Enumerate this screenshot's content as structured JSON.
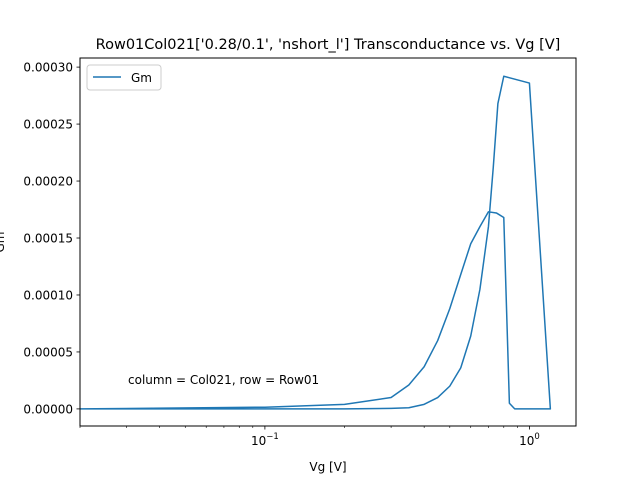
{
  "chart_data": {
    "type": "line",
    "title": "Row01Col021['0.28/0.1', 'nshort_l'] Transconductance vs. Vg [V]",
    "xlabel": "Vg [V]",
    "ylabel": "Gm",
    "xscale": "log",
    "xlim": [
      0.02,
      1.5
    ],
    "ylim": [
      -1.5e-05,
      0.000308
    ],
    "x_ticks": [
      {
        "value": 0.1,
        "base": "10",
        "exponent": "−1"
      },
      {
        "value": 1.0,
        "base": "10",
        "exponent": "0"
      }
    ],
    "y_ticks": [
      {
        "value": 0.0,
        "label": "0.00000"
      },
      {
        "value": 5e-05,
        "label": "0.00005"
      },
      {
        "value": 0.0001,
        "label": "0.00010"
      },
      {
        "value": 0.00015,
        "label": "0.00015"
      },
      {
        "value": 0.0002,
        "label": "0.00020"
      },
      {
        "value": 0.00025,
        "label": "0.00025"
      },
      {
        "value": 0.0003,
        "label": "0.00030"
      }
    ],
    "grid": false,
    "legend_position": "top-left",
    "annotation": "column = Col021, row = Row01",
    "series": [
      {
        "name": "Gm",
        "color": "#1f77b4",
        "x": [
          0.02,
          0.1,
          0.2,
          0.3,
          0.35,
          0.4,
          0.45,
          0.5,
          0.55,
          0.6,
          0.65,
          0.7,
          0.73,
          0.76,
          0.8,
          1.0,
          1.2,
          1.2,
          1.0,
          0.95,
          0.92,
          0.88,
          0.84,
          0.8,
          0.75,
          0.7,
          0.65,
          0.6,
          0.55,
          0.5,
          0.45,
          0.4,
          0.35,
          0.3,
          0.2,
          0.1,
          0.02
        ],
        "y": [
          0.0,
          0.0,
          0.0,
          5e-07,
          1e-06,
          4e-06,
          1e-05,
          2e-05,
          3.6e-05,
          6.4e-05,
          0.000105,
          0.00016,
          0.000212,
          0.000268,
          0.000292,
          0.000286,
          0.0,
          0.0,
          0.0,
          0.0,
          0.0,
          0.0,
          5e-06,
          0.000168,
          0.000172,
          0.000173,
          0.00016,
          0.000145,
          0.000118,
          8.8e-05,
          6e-05,
          3.7e-05,
          2.1e-05,
          1e-05,
          4e-06,
          1.5e-06,
          0.0
        ]
      }
    ]
  }
}
